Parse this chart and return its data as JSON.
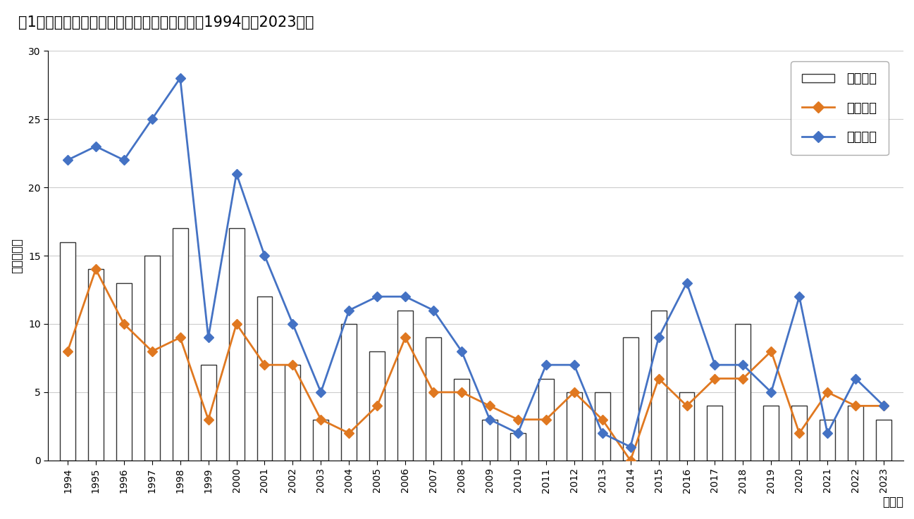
{
  "title": "図1　酸素欠乏症の労働災害発生状況の推移（1994年～2023年）",
  "years": [
    1994,
    1995,
    1996,
    1997,
    1998,
    1999,
    2000,
    2001,
    2002,
    2003,
    2004,
    2005,
    2006,
    2007,
    2008,
    2009,
    2010,
    2011,
    2012,
    2013,
    2014,
    2015,
    2016,
    2017,
    2018,
    2019,
    2020,
    2021,
    2022,
    2023
  ],
  "hassei_kensuu": [
    16,
    14,
    13,
    15,
    17,
    7,
    17,
    12,
    7,
    3,
    10,
    8,
    11,
    9,
    6,
    3,
    2,
    6,
    5,
    5,
    9,
    11,
    5,
    4,
    10,
    4,
    4,
    3,
    4,
    3
  ],
  "shibo_sha": [
    8,
    14,
    10,
    8,
    9,
    3,
    10,
    7,
    7,
    3,
    2,
    4,
    9,
    5,
    5,
    4,
    3,
    3,
    5,
    3,
    0,
    6,
    4,
    6,
    6,
    8,
    2,
    5,
    4,
    4
  ],
  "hisaisha": [
    22,
    23,
    22,
    25,
    28,
    9,
    21,
    15,
    10,
    5,
    11,
    12,
    12,
    11,
    8,
    3,
    2,
    7,
    7,
    2,
    1,
    9,
    13,
    7,
    7,
    5,
    12,
    2,
    6,
    4
  ],
  "bar_facecolor": "#ffffff",
  "bar_edge_color": "#333333",
  "orange_color": "#e07820",
  "blue_color": "#4472c4",
  "ylabel": "「人・件」",
  "xlabel": "「年」",
  "ylim": [
    0,
    30
  ],
  "yticks": [
    0,
    5,
    10,
    15,
    20,
    25,
    30
  ],
  "legend_bar": "発生件数",
  "legend_orange": "死亡者数",
  "legend_blue": "被災者数",
  "background_color": "#ffffff",
  "title_fontsize": 15,
  "axis_fontsize": 12,
  "tick_fontsize": 10,
  "legend_fontsize": 13
}
